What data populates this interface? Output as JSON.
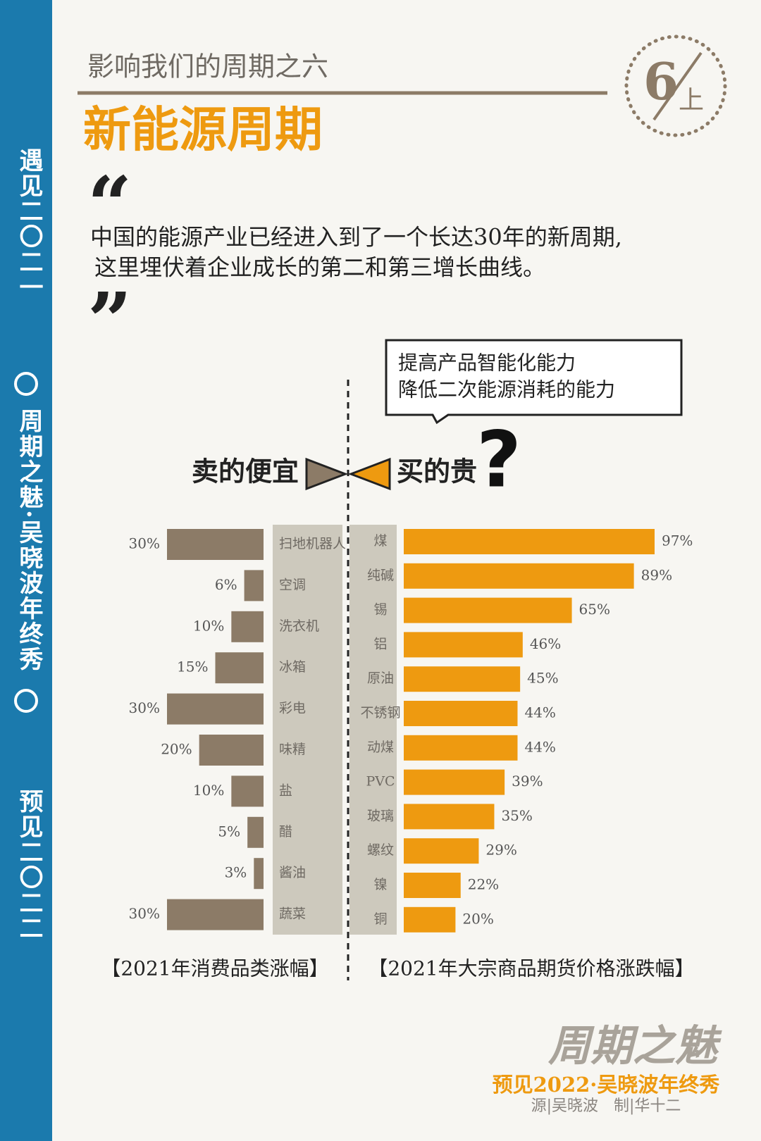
{
  "sidebar": {
    "top": "遇见二〇二一",
    "middle": "周期之魅·吴晓波年终秀",
    "bottom": "预见二〇二二"
  },
  "header": {
    "subtitle": "影响我们的周期之六",
    "title": "新能源周期",
    "badge_number": "6",
    "badge_text": "上"
  },
  "quote": {
    "open": "“",
    "lines": [
      "中国的能源产业已经进入到了一个长达30年的新周期,",
      "这里埋伏着企业成长的第二和第三增长曲线。"
    ],
    "close": "”"
  },
  "callout": {
    "lines": [
      "提高产品智能化能力",
      "降低二次能源消耗的能力"
    ],
    "mark": "?"
  },
  "labels": {
    "left": "卖的便宜",
    "right": "买的贵"
  },
  "chart_data": [
    {
      "type": "bar",
      "title": "【2021年消费品类涨幅】",
      "categories": [
        "扫地机器人",
        "空调",
        "洗衣机",
        "冰箱",
        "彩电",
        "味精",
        "盐",
        "醋",
        "酱油",
        "蔬菜"
      ],
      "values": [
        30,
        6,
        10,
        15,
        30,
        20,
        10,
        5,
        3,
        30
      ],
      "value_labels": [
        "30%",
        "6%",
        "10%",
        "15%",
        "30%",
        "20%",
        "10%",
        "5%",
        "3%",
        "30%"
      ],
      "color": "#8c7b67",
      "xlim": [
        0,
        30
      ]
    },
    {
      "type": "bar",
      "title": "【2021年大宗商品期货价格涨跌幅】",
      "categories": [
        "煤",
        "纯碱",
        "锡",
        "铝",
        "原油",
        "不锈钢",
        "动煤",
        "PVC",
        "玻璃",
        "螺纹",
        "镍",
        "铜"
      ],
      "values": [
        97,
        89,
        65,
        46,
        45,
        44,
        44,
        39,
        35,
        29,
        22,
        20
      ],
      "value_labels": [
        "97%",
        "89%",
        "65%",
        "46%",
        "45%",
        "44%",
        "44%",
        "39%",
        "35%",
        "29%",
        "22%",
        "20%"
      ],
      "color": "#ee9a10",
      "xlim": [
        0,
        100
      ]
    }
  ],
  "footer": {
    "logo": "周期之魅",
    "event": "预见2022·吴晓波年终秀",
    "credit": "源|吴晓波　制|华十二"
  }
}
